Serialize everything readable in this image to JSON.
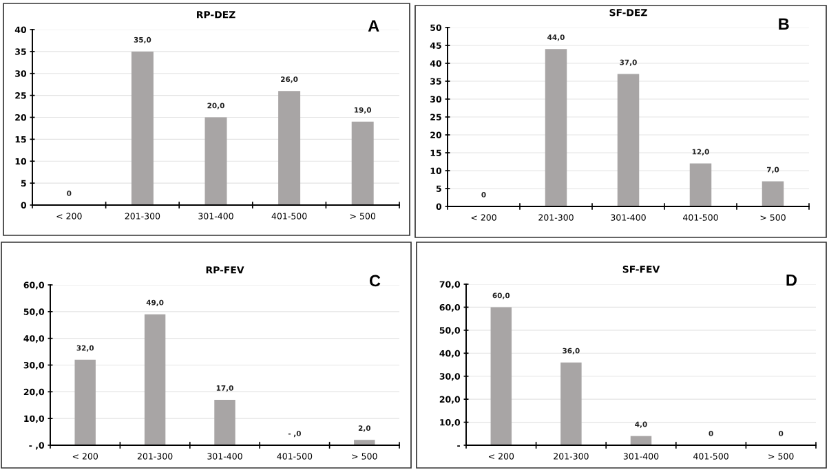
{
  "chart_data": [
    {
      "type": "bar",
      "title": "RP-DEZ",
      "annotations": [
        "A"
      ],
      "categories": [
        "< 200",
        "201-300",
        "301-400",
        "401-500",
        "> 500"
      ],
      "values": [
        0,
        35,
        20,
        26,
        19
      ],
      "value_labels": [
        "0",
        "35,0",
        "20,0",
        "26,0",
        "19,0"
      ],
      "color": "#a8a5a5",
      "ylim": [
        0,
        40
      ],
      "yticks": [
        0,
        5,
        10,
        15,
        20,
        25,
        30,
        35,
        40
      ],
      "grid": "y"
    },
    {
      "type": "bar",
      "title": "SF-DEZ",
      "annotations": [
        "B"
      ],
      "categories": [
        "< 200",
        "201-300",
        "301-400",
        "401-500",
        "> 500"
      ],
      "values": [
        0,
        44,
        37,
        12,
        7
      ],
      "value_labels": [
        "0",
        "44,0",
        "37,0",
        "12,0",
        "7,0"
      ],
      "color": "#a8a5a5",
      "ylim": [
        0,
        50
      ],
      "yticks": [
        0,
        5,
        10,
        15,
        20,
        25,
        30,
        35,
        40,
        45,
        50
      ],
      "grid": "y"
    },
    {
      "type": "bar",
      "title": "RP-FEV",
      "annotations": [
        "C"
      ],
      "categories": [
        "< 200",
        "201-300",
        "301-400",
        "401-500",
        "> 500"
      ],
      "values": [
        32,
        49,
        17,
        0,
        2
      ],
      "value_labels": [
        "32,0",
        "49,0",
        "17,0",
        "- ,0",
        "2,0"
      ],
      "color": "#a8a5a5",
      "ylim": [
        0,
        60
      ],
      "yticks": [
        {
          "value": 0,
          "label": "- ,0"
        },
        {
          "value": 10,
          "label": "10,0"
        },
        {
          "value": 20,
          "label": "20,0"
        },
        {
          "value": 30,
          "label": "30,0"
        },
        {
          "value": 40,
          "label": "40,0"
        },
        {
          "value": 50,
          "label": "50,0"
        },
        {
          "value": 60,
          "label": "60,0"
        }
      ],
      "grid": "y"
    },
    {
      "type": "bar",
      "title": "SF-FEV",
      "annotations": [
        "D"
      ],
      "categories": [
        "< 200",
        "201-300",
        "301-400",
        "401-500",
        "> 500"
      ],
      "values": [
        60,
        36,
        4,
        0,
        0
      ],
      "value_labels": [
        "60,0",
        "36,0",
        "4,0",
        "0",
        "0"
      ],
      "color": "#a8a5a5",
      "ylim": [
        0,
        70
      ],
      "yticks": [
        {
          "value": 0,
          "label": "-"
        },
        {
          "value": 10,
          "label": "10,0"
        },
        {
          "value": 20,
          "label": "20,0"
        },
        {
          "value": 30,
          "label": "30,0"
        },
        {
          "value": 40,
          "label": "40,0"
        },
        {
          "value": 50,
          "label": "50,0"
        },
        {
          "value": 60,
          "label": "60,0"
        },
        {
          "value": 70,
          "label": "70,0"
        }
      ],
      "grid": "y"
    }
  ]
}
